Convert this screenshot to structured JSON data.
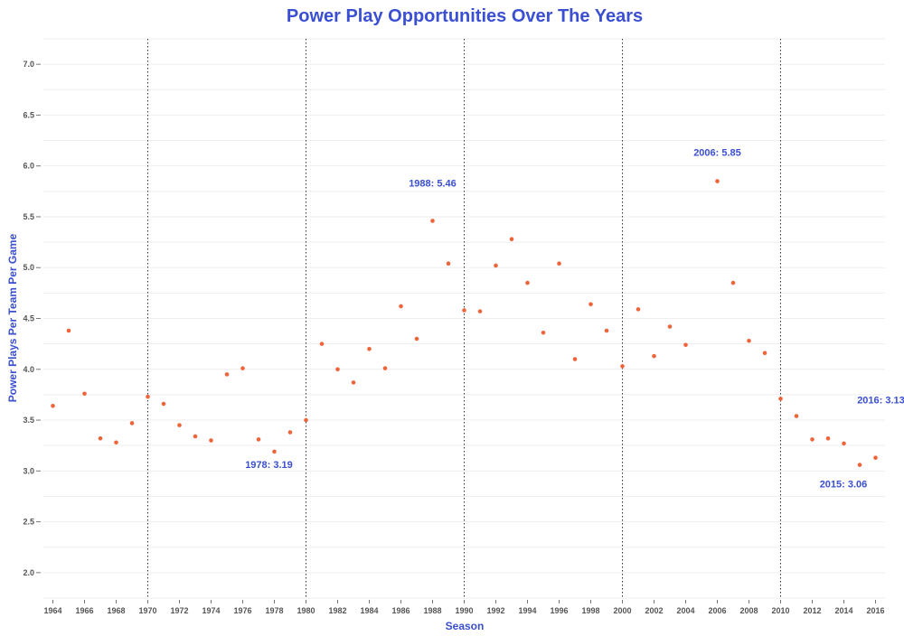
{
  "colors": {
    "accent": "#3a4fd1",
    "point": "#f0643a",
    "grid": "#eeeeee",
    "vline": "#333333",
    "tick_text": "#555555"
  },
  "chart_data": {
    "type": "scatter",
    "title": "Power Play Opportunities Over The Years",
    "xlabel": "Season",
    "ylabel": "Power Plays Per Team Per Game",
    "xlim": [
      1963.4,
      2016.6
    ],
    "ylim": [
      1.75,
      7.25
    ],
    "x_ticks": [
      1964,
      1966,
      1968,
      1970,
      1972,
      1974,
      1976,
      1978,
      1980,
      1982,
      1984,
      1986,
      1988,
      1990,
      1992,
      1994,
      1996,
      1998,
      2000,
      2002,
      2004,
      2006,
      2008,
      2010,
      2012,
      2014,
      2016
    ],
    "x_tick_labels": [
      "1964",
      "1966",
      "1968",
      "1970",
      "1972",
      "1974",
      "1976",
      "1978",
      "1980",
      "1982",
      "1984",
      "1986",
      "1988",
      "1990",
      "1992",
      "1994",
      "1996",
      "1998",
      "2000",
      "2002",
      "2004",
      "2006",
      "2008",
      "2010",
      "2012",
      "2014",
      "2016"
    ],
    "y_ticks": [
      2.0,
      2.5,
      3.0,
      3.5,
      4.0,
      4.5,
      5.0,
      5.5,
      6.0,
      6.5,
      7.0
    ],
    "y_tick_labels": [
      "2.0",
      "2.5",
      "3.0",
      "3.5",
      "4.0",
      "4.5",
      "5.0",
      "5.5",
      "6.0",
      "6.5",
      "7.0"
    ],
    "grid": "horizontal",
    "vertical_lines": [
      1970,
      1980,
      1990,
      2000,
      2010
    ],
    "points": {
      "x": [
        1964,
        1965,
        1966,
        1967,
        1968,
        1969,
        1970,
        1971,
        1972,
        1973,
        1974,
        1975,
        1976,
        1977,
        1978,
        1979,
        1980,
        1981,
        1982,
        1983,
        1984,
        1985,
        1986,
        1987,
        1988,
        1989,
        1990,
        1991,
        1992,
        1993,
        1994,
        1995,
        1996,
        1997,
        1998,
        1999,
        2000,
        2001,
        2002,
        2003,
        2004,
        2006,
        2007,
        2008,
        2009,
        2010,
        2011,
        2012,
        2013,
        2014,
        2015,
        2016
      ],
      "y": [
        3.64,
        4.38,
        3.76,
        3.32,
        3.28,
        3.47,
        3.73,
        3.66,
        3.45,
        3.34,
        3.3,
        3.95,
        4.01,
        3.31,
        3.19,
        3.38,
        3.5,
        4.25,
        4.0,
        3.87,
        4.2,
        4.01,
        4.62,
        4.3,
        5.46,
        5.04,
        4.58,
        4.57,
        5.02,
        5.28,
        4.85,
        4.36,
        5.04,
        4.1,
        4.64,
        4.38,
        4.03,
        4.59,
        4.13,
        4.42,
        4.24,
        5.85,
        4.85,
        4.28,
        4.16,
        3.71,
        3.54,
        3.31,
        3.32,
        3.27,
        3.06,
        3.13
      ]
    },
    "annotations": [
      {
        "text": "1978: 3.19"
      },
      {
        "text": "1988: 5.46"
      },
      {
        "text": "2006: 5.85"
      },
      {
        "text": "2015: 3.06"
      },
      {
        "text": "2016: 3.13"
      }
    ]
  }
}
